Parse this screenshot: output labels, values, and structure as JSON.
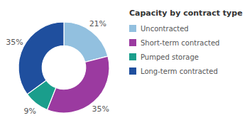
{
  "chart_data": {
    "type": "donut",
    "title": "Capacity by contract type",
    "categories": [
      "Uncontracted",
      "Short-term contracted",
      "Pumped storage",
      "Long-term contracted"
    ],
    "values": [
      21,
      35,
      9,
      35
    ],
    "value_labels": [
      "21%",
      "35%",
      "9%",
      "35%"
    ],
    "colors": [
      "#92c0df",
      "#9b3aa0",
      "#1a9e8c",
      "#1f4f9e"
    ],
    "data_labels": true,
    "legend": "right"
  }
}
